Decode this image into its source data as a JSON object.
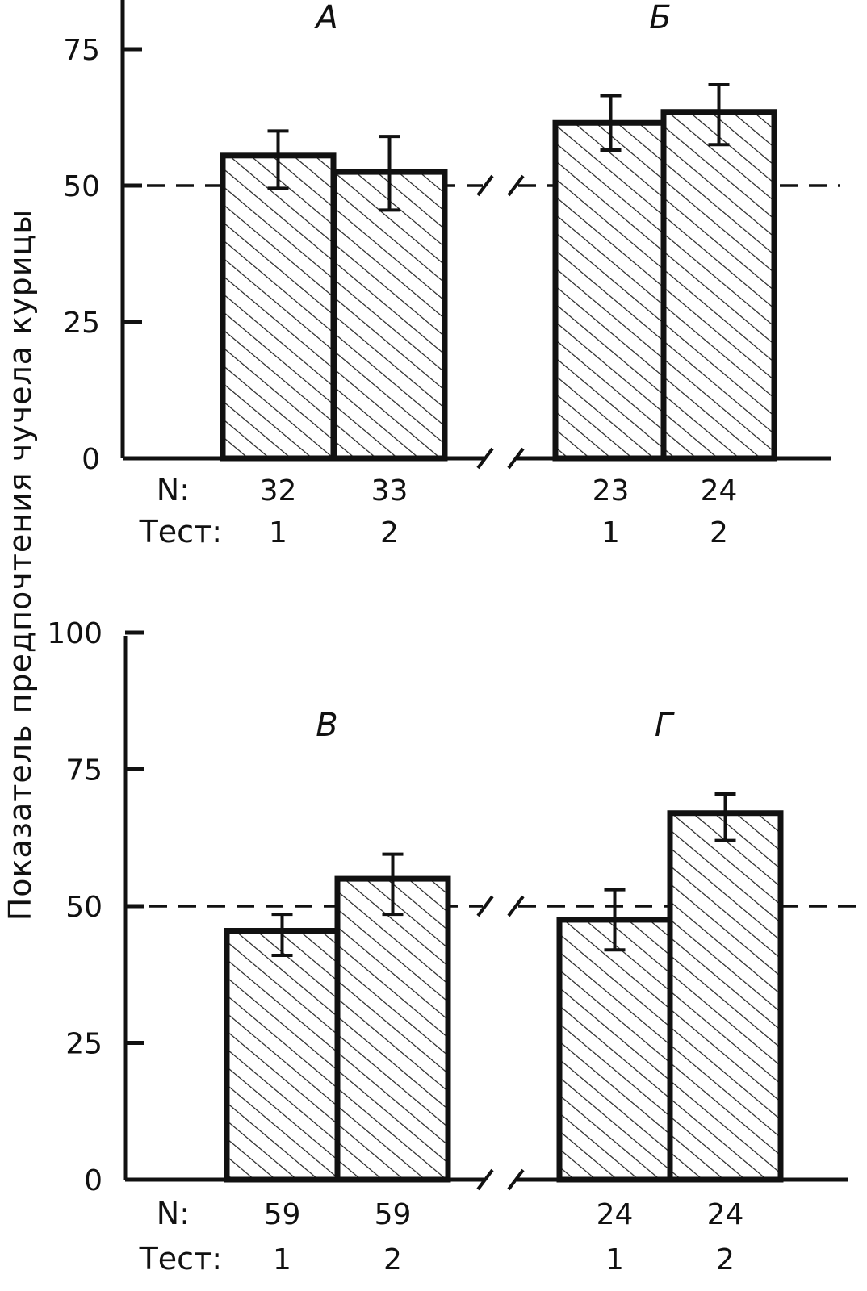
{
  "ylabel": "Показатель предпочтения чучела курицы",
  "chart_data": [
    {
      "type": "bar",
      "ylim": [
        0,
        80
      ],
      "yticks": [
        0,
        25,
        50,
        75
      ],
      "reference_line": 50,
      "row_labels": {
        "n": "N:",
        "test": "Тест:"
      },
      "panels": [
        {
          "label": "А",
          "bars": [
            {
              "test": "1",
              "n": "32",
              "value": 55.5,
              "err_low": 49.5,
              "err_high": 60.0
            },
            {
              "test": "2",
              "n": "33",
              "value": 52.5,
              "err_low": 45.5,
              "err_high": 59.0
            }
          ]
        },
        {
          "label": "Б",
          "bars": [
            {
              "test": "1",
              "n": "23",
              "value": 61.5,
              "err_low": 56.5,
              "err_high": 66.5
            },
            {
              "test": "2",
              "n": "24",
              "value": 63.5,
              "err_low": 57.5,
              "err_high": 68.5
            }
          ]
        }
      ]
    },
    {
      "type": "bar",
      "ylim": [
        0,
        100
      ],
      "yticks": [
        0,
        25,
        50,
        75,
        100
      ],
      "reference_line": 50,
      "row_labels": {
        "n": "N:",
        "test": "Тест:"
      },
      "panels": [
        {
          "label": "В",
          "bars": [
            {
              "test": "1",
              "n": "59",
              "value": 45.5,
              "err_low": 41.0,
              "err_high": 48.5
            },
            {
              "test": "2",
              "n": "59",
              "value": 55.0,
              "err_low": 48.5,
              "err_high": 59.5
            }
          ]
        },
        {
          "label": "Г",
          "bars": [
            {
              "test": "1",
              "n": "24",
              "value": 47.5,
              "err_low": 42.0,
              "err_high": 53.0
            },
            {
              "test": "2",
              "n": "24",
              "value": 67.0,
              "err_low": 62.0,
              "err_high": 70.5
            }
          ]
        }
      ]
    }
  ]
}
